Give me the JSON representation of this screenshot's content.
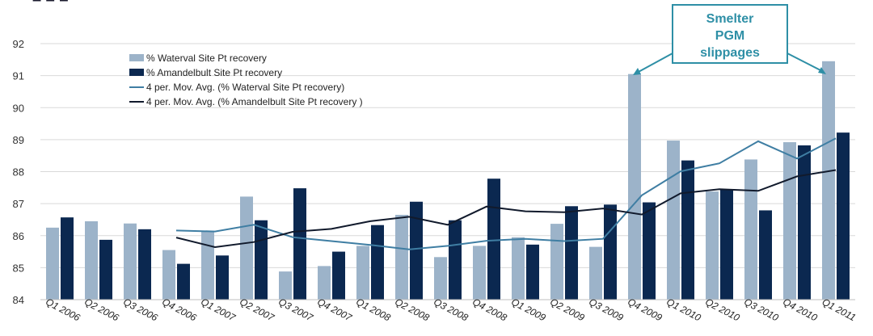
{
  "title_fragment": "– – –",
  "callout": {
    "lines": [
      "Smelter",
      "PGM",
      "slippages"
    ]
  },
  "legend": [
    {
      "label": "% Waterval Site Pt recovery",
      "kind": "bar",
      "color": "#9cb3c9"
    },
    {
      "label": "% Amandelbult  Site Pt recovery",
      "kind": "bar",
      "color": "#0b2850"
    },
    {
      "label": "4 per. Mov. Avg. (% Waterval Site Pt recovery)",
      "kind": "line",
      "color": "#3f7ea3"
    },
    {
      "label": "4 per. Mov. Avg. (% Amandelbult Site Pt recovery )",
      "kind": "line",
      "color": "#111a2c"
    }
  ],
  "chart_data": {
    "type": "bar",
    "categories": [
      "Q1 2006",
      "Q2 2006",
      "Q3 2006",
      "Q4 2006",
      "Q1 2007",
      "Q2 2007",
      "Q3 2007",
      "Q4 2007",
      "Q1 2008",
      "Q2 2008",
      "Q3 2008",
      "Q4 2008",
      "Q1 2009",
      "Q2 2009",
      "Q3 2009",
      "Q4 2009",
      "Q1 2010",
      "Q2 2010",
      "Q3 2010",
      "Q4 2010",
      "Q1 2011"
    ],
    "series": [
      {
        "name": "% Waterval Site Pt recovery",
        "kind": "bar",
        "color": "#9cb3c9",
        "values": [
          86.25,
          86.45,
          86.38,
          85.55,
          86.15,
          87.22,
          84.88,
          85.05,
          85.68,
          86.65,
          85.33,
          85.68,
          85.95,
          86.37,
          85.65,
          91.05,
          88.97,
          87.38,
          88.38,
          88.92,
          91.45
        ]
      },
      {
        "name": "% Amandelbult  Site Pt recovery",
        "kind": "bar",
        "color": "#0b2850",
        "values": [
          86.57,
          85.87,
          86.2,
          85.12,
          85.38,
          86.48,
          87.48,
          85.5,
          86.33,
          87.06,
          86.48,
          87.78,
          85.72,
          86.92,
          86.97,
          87.04,
          88.35,
          87.45,
          86.79,
          88.82,
          89.22
        ]
      },
      {
        "name": "4 per. Mov. Avg. (% Waterval Site Pt recovery)",
        "kind": "line",
        "color": "#3f7ea3",
        "values": [
          null,
          null,
          null,
          86.16,
          86.13,
          86.34,
          85.95,
          85.83,
          85.71,
          85.57,
          85.68,
          85.84,
          85.9,
          85.83,
          85.9,
          87.26,
          88.01,
          88.26,
          88.95,
          88.41,
          89.04
        ]
      },
      {
        "name": "4 per. Mov. Avg. (% Amandelbult Site Pt recovery )",
        "kind": "line",
        "color": "#111a2c",
        "values": [
          null,
          null,
          null,
          85.94,
          85.64,
          85.8,
          86.12,
          86.21,
          86.45,
          86.59,
          86.34,
          86.91,
          86.76,
          86.73,
          86.85,
          86.66,
          87.32,
          87.45,
          87.4,
          87.85,
          88.05
        ]
      }
    ],
    "ylim": [
      84,
      92
    ],
    "yticks": [
      84,
      85,
      86,
      87,
      88,
      89,
      90,
      91,
      92
    ],
    "grid": true,
    "legend_position": "top-left",
    "xlabel": "",
    "ylabel": ""
  }
}
